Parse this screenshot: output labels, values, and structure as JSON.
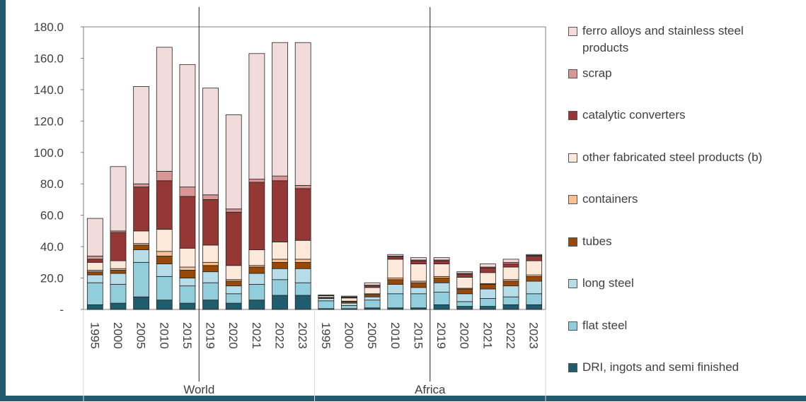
{
  "chart_data": {
    "type": "stacked-bar",
    "categories": [
      "1995",
      "2000",
      "2005",
      "2010",
      "2015",
      "2019",
      "2020",
      "2021",
      "2022",
      "2023",
      "1995",
      "2000",
      "2005",
      "2010",
      "2015",
      "2019",
      "2020",
      "2021",
      "2022",
      "2023"
    ],
    "group_labels": [
      "World",
      "Africa"
    ],
    "ylim": [
      0,
      180
    ],
    "yticks": [
      {
        "value": 0,
        "label": "-"
      },
      {
        "value": 20,
        "label": "20.0"
      },
      {
        "value": 40,
        "label": "40.0"
      },
      {
        "value": 60,
        "label": "60.0"
      },
      {
        "value": 80,
        "label": "80.0"
      },
      {
        "value": 100,
        "label": "100.0"
      },
      {
        "value": 120,
        "label": "120.0"
      },
      {
        "value": 140,
        "label": "140.0"
      },
      {
        "value": 160,
        "label": "160.0"
      },
      {
        "value": 180,
        "label": "180.0"
      }
    ],
    "series": [
      {
        "name": "DRI, ingots and semi finished",
        "color": "#1f5c6e",
        "values": [
          3,
          4,
          8,
          6,
          4,
          6,
          4,
          6,
          9,
          9,
          0.5,
          0.5,
          1,
          1,
          1,
          3,
          2,
          2,
          3,
          3
        ]
      },
      {
        "name": "flat steel",
        "color": "#92cddc",
        "values": [
          14,
          12,
          22,
          15,
          11,
          11,
          6,
          10,
          10,
          8,
          5,
          2,
          5,
          9,
          9,
          8,
          3,
          5,
          5,
          7
        ]
      },
      {
        "name": "long steel",
        "color": "#b7dee8",
        "values": [
          5,
          7,
          8,
          8,
          5,
          7,
          5,
          7,
          7,
          9,
          1.5,
          1.5,
          2,
          6,
          4,
          6,
          5,
          6,
          7,
          8
        ]
      },
      {
        "name": "tubes",
        "color": "#984807",
        "values": [
          2,
          2,
          3,
          5,
          5,
          4,
          3,
          4,
          4,
          4,
          0.5,
          1,
          1.5,
          3,
          3,
          3,
          3,
          3,
          3,
          3
        ]
      },
      {
        "name": "containers",
        "color": "#fac090",
        "values": [
          1,
          1,
          1,
          3,
          2,
          2,
          1,
          1,
          2,
          2,
          0.2,
          0.3,
          0.5,
          1,
          1,
          1,
          0.5,
          0.5,
          1,
          1
        ]
      },
      {
        "name": "other fabricated steel products (b)",
        "color": "#fde9d9",
        "values": [
          5,
          5,
          8,
          14,
          12,
          11,
          9,
          10,
          11,
          12,
          1,
          2,
          4,
          12,
          11,
          8,
          7,
          7,
          8,
          9
        ]
      },
      {
        "name": "catalytic converters",
        "color": "#953735",
        "values": [
          2,
          18,
          28,
          31,
          33,
          29,
          34,
          43,
          39,
          33,
          0.3,
          0.5,
          1,
          1.5,
          2,
          2,
          2,
          3,
          2,
          3
        ]
      },
      {
        "name": "scrap",
        "color": "#d99694",
        "values": [
          2,
          1,
          2,
          6,
          6,
          3,
          2,
          2,
          3,
          2,
          0.1,
          0.2,
          0.5,
          0.5,
          0.5,
          0.5,
          0.5,
          0.5,
          1,
          0.5
        ]
      },
      {
        "name": "ferro alloys and stainless steel products",
        "color": "#f2dcdb",
        "values": [
          24,
          41,
          62,
          79,
          78,
          68,
          60,
          80,
          85,
          91,
          0.1,
          0.5,
          1.5,
          1,
          1.5,
          1.5,
          1,
          2,
          2,
          0.5
        ]
      }
    ]
  }
}
